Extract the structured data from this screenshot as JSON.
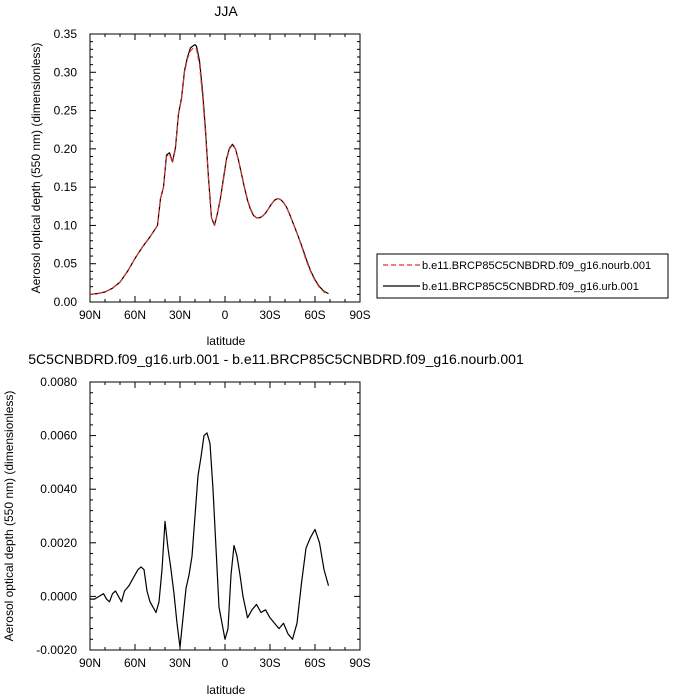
{
  "chart_data": [
    {
      "type": "line",
      "title": "JJA",
      "xlabel": "latitude",
      "ylabel": "Aerosol optical depth (550 nm) (dimensionless)",
      "xlim": [
        90,
        -90
      ],
      "ylim": [
        0,
        0.35
      ],
      "x_ticks": [
        90,
        60,
        30,
        0,
        -30,
        -60,
        -90
      ],
      "x_tick_labels": [
        "90N",
        "60N",
        "30N",
        "0",
        "30S",
        "60S",
        "90S"
      ],
      "y_ticks": [
        0,
        0.05,
        0.1,
        0.15,
        0.2,
        0.25,
        0.3,
        0.35
      ],
      "y_tick_labels": [
        "0.00",
        "0.05",
        "0.10",
        "0.15",
        "0.20",
        "0.25",
        "0.30",
        "0.35"
      ],
      "legend_position": "right",
      "x": [
        90,
        85,
        80,
        75,
        70,
        65,
        60,
        55,
        50,
        45,
        43,
        41,
        39,
        37,
        35,
        33,
        31,
        29,
        27,
        25,
        23,
        21,
        20,
        19,
        17,
        15,
        13,
        11,
        9,
        7,
        5,
        3,
        1,
        -1,
        -3,
        -5,
        -7,
        -9,
        -11,
        -13,
        -15,
        -17,
        -19,
        -21,
        -23,
        -25,
        -27,
        -29,
        -31,
        -33,
        -35,
        -37,
        -39,
        -41,
        -43,
        -45,
        -48,
        -51,
        -54,
        -57,
        -60,
        -63,
        -66,
        -69
      ],
      "series": [
        {
          "name": "b.e11.BRCP85C5CNBDRD.f09_g16.nourb.001",
          "color": "#e8312a",
          "dash": "dashed",
          "values": [
            0.01,
            0.011,
            0.013,
            0.018,
            0.026,
            0.04,
            0.057,
            0.072,
            0.085,
            0.1,
            0.135,
            0.15,
            0.19,
            0.193,
            0.182,
            0.2,
            0.245,
            0.265,
            0.3,
            0.318,
            0.328,
            0.332,
            0.332,
            0.33,
            0.31,
            0.27,
            0.22,
            0.16,
            0.11,
            0.1,
            0.115,
            0.135,
            0.16,
            0.185,
            0.2,
            0.205,
            0.2,
            0.185,
            0.168,
            0.15,
            0.134,
            0.122,
            0.114,
            0.11,
            0.11,
            0.112,
            0.116,
            0.122,
            0.128,
            0.133,
            0.135,
            0.134,
            0.13,
            0.124,
            0.115,
            0.105,
            0.09,
            0.073,
            0.055,
            0.04,
            0.028,
            0.019,
            0.013,
            0.011
          ]
        },
        {
          "name": "b.e11.BRCP85C5CNBDRD.f09_g16.urb.001",
          "color": "#000000",
          "dash": "solid",
          "values": [
            0.01,
            0.011,
            0.013,
            0.018,
            0.026,
            0.04,
            0.057,
            0.072,
            0.085,
            0.1,
            0.135,
            0.15,
            0.192,
            0.195,
            0.183,
            0.202,
            0.246,
            0.266,
            0.302,
            0.32,
            0.332,
            0.335,
            0.336,
            0.334,
            0.315,
            0.276,
            0.225,
            0.162,
            0.11,
            0.1,
            0.116,
            0.136,
            0.162,
            0.187,
            0.201,
            0.206,
            0.2,
            0.185,
            0.167,
            0.149,
            0.133,
            0.121,
            0.113,
            0.11,
            0.11,
            0.112,
            0.116,
            0.122,
            0.128,
            0.133,
            0.135,
            0.134,
            0.13,
            0.124,
            0.115,
            0.105,
            0.09,
            0.074,
            0.057,
            0.041,
            0.029,
            0.02,
            0.014,
            0.011
          ]
        }
      ]
    },
    {
      "type": "line",
      "title": "5C5CNBDRD.f09_g16.urb.001 - b.e11.BRCP85C5CNBDRD.f09_g16.nourb.001",
      "xlabel": "latitude",
      "ylabel": "Aerosol optical depth (550 nm) (dimensionless)",
      "xlim": [
        90,
        -90
      ],
      "ylim": [
        -0.002,
        0.008
      ],
      "x_ticks": [
        90,
        60,
        30,
        0,
        -30,
        -60,
        -90
      ],
      "x_tick_labels": [
        "90N",
        "60N",
        "30N",
        "0",
        "30S",
        "60S",
        "90S"
      ],
      "y_ticks": [
        -0.002,
        0,
        0.002,
        0.004,
        0.006,
        0.008
      ],
      "y_tick_labels": [
        "-0.0020",
        "0.0000",
        "0.0020",
        "0.0040",
        "0.0060",
        "0.0080"
      ],
      "x": [
        90,
        87,
        84,
        81,
        79,
        77,
        75,
        73,
        71,
        69,
        67,
        64,
        61,
        58,
        56,
        54,
        52,
        50,
        48,
        46,
        44,
        42,
        40,
        38,
        36,
        34,
        32,
        30,
        28,
        26,
        24,
        22,
        20,
        18,
        16,
        14,
        12,
        10,
        8,
        6,
        4,
        2,
        0,
        -2,
        -4,
        -6,
        -8,
        -10,
        -12,
        -15,
        -18,
        -21,
        -24,
        -27,
        -30,
        -33,
        -36,
        -39,
        -42,
        -45,
        -48,
        -51,
        -54,
        -57,
        -60,
        -63,
        -66,
        -69
      ],
      "series": [
        {
          "name": "",
          "color": "#000000",
          "dash": "solid",
          "values": [
            -0.0001,
            -0.0001,
            0.0,
            0.0001,
            -0.0001,
            -0.0002,
            0.0001,
            0.0002,
            0.0,
            -0.0002,
            0.0002,
            0.0004,
            0.0007,
            0.001,
            0.0011,
            0.001,
            0.0002,
            -0.0002,
            -0.0004,
            -0.0006,
            -0.0002,
            0.001,
            0.0028,
            0.0018,
            0.001,
            0.0001,
            -0.001,
            -0.0019,
            -0.0008,
            0.0003,
            0.0008,
            0.0015,
            0.003,
            0.0045,
            0.0052,
            0.006,
            0.0061,
            0.0057,
            0.004,
            0.0018,
            -0.0004,
            -0.001,
            -0.0016,
            -0.0012,
            0.0008,
            0.0019,
            0.0015,
            0.0008,
            0.0,
            -0.0008,
            -0.0005,
            -0.0003,
            -0.0006,
            -0.0005,
            -0.0008,
            -0.001,
            -0.0012,
            -0.001,
            -0.0014,
            -0.0016,
            -0.001,
            0.0005,
            0.0018,
            0.0022,
            0.0025,
            0.002,
            0.001,
            0.0004
          ]
        }
      ]
    }
  ]
}
